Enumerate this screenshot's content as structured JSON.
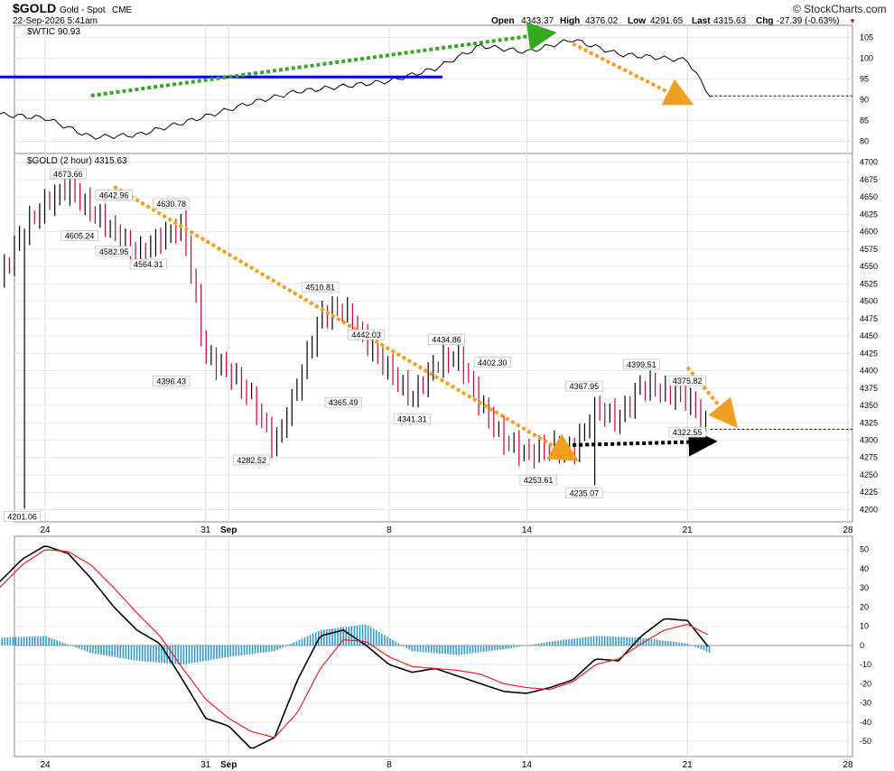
{
  "header": {
    "symbol": "$GOLD",
    "name": "Gold - Spot",
    "exchange": "CME",
    "datetime": "22-Sep-2026 5:41am",
    "brand": "© StockCharts.com",
    "open_label": "Open",
    "open": "4343.37",
    "high_label": "High",
    "high": "4376.02",
    "low_label": "Low",
    "low": "4291.65",
    "last_label": "Last",
    "last": "4315.63",
    "chg_label": "Chg",
    "chg": "-27.39 (-0.63%)",
    "chg_marker": "▼"
  },
  "colors": {
    "up": "#000000",
    "down": "#cc0033",
    "blue": "#0000ee",
    "green": "#33aa22",
    "orange": "#f0a020",
    "black_arrow": "#000000",
    "macd": "#000000",
    "signal": "#ee2222",
    "hist": "#3399cc"
  },
  "chart_data": [
    {
      "type": "line",
      "panel": "top",
      "legend": "$WTIC 90.93",
      "x_dates": [
        "Aug 22",
        "Aug 24",
        "Aug 26",
        "Aug 28",
        "Aug 31",
        "Sep 2",
        "Sep 4",
        "Sep 8",
        "Sep 10",
        "Sep 12",
        "Sep 14",
        "Sep 16",
        "Sep 18",
        "Sep 21",
        "Sep 22"
      ],
      "y": [
        86.5,
        85.6,
        81.0,
        81.5,
        86.0,
        89.3,
        92.0,
        94.5,
        97.5,
        103.0,
        101.5,
        104.5,
        101.0,
        99.5,
        90.93
      ],
      "yticks": [
        80,
        85,
        90,
        95,
        100,
        105
      ],
      "ylim": [
        77.5,
        107.5
      ],
      "hline": 95.5,
      "last": 90.93
    },
    {
      "type": "bar",
      "panel": "middle",
      "legend": "$GOLD (2 hour) 4315.63",
      "yticks": [
        4200,
        4225,
        4250,
        4275,
        4300,
        4325,
        4350,
        4375,
        4400,
        4425,
        4450,
        4475,
        4500,
        4525,
        4550,
        4575,
        4600,
        4625,
        4650,
        4675,
        4700
      ],
      "ylim": [
        4185,
        4710
      ],
      "path_dates": [
        "Aug 22",
        "Aug 23",
        "Aug 24",
        "Aug 25",
        "Aug 26",
        "Aug 27",
        "Aug 28",
        "Aug 29",
        "Aug 30",
        "Aug 31",
        "Sep 1",
        "Sep 2",
        "Sep 3",
        "Sep 4",
        "Sep 5",
        "Sep 6",
        "Sep 7",
        "Sep 8",
        "Sep 9",
        "Sep 10",
        "Sep 11",
        "Sep 12",
        "Sep 13",
        "Sep 14",
        "Sep 15",
        "Sep 16",
        "Sep 17",
        "Sep 18",
        "Sep 19",
        "Sep 20",
        "Sep 21",
        "Sep 22"
      ],
      "path_values": [
        4530,
        4600,
        4640,
        4665,
        4630,
        4600,
        4565,
        4590,
        4610,
        4420,
        4400,
        4360,
        4290,
        4380,
        4480,
        4490,
        4440,
        4400,
        4360,
        4410,
        4420,
        4350,
        4300,
        4280,
        4290,
        4285,
        4345,
        4330,
        4380,
        4370,
        4360,
        4316
      ],
      "annotations": [
        {
          "date": "Aug 23",
          "value": "4201.06",
          "pos": "below"
        },
        {
          "date": "Aug 25",
          "value": "4673.66",
          "pos": "above"
        },
        {
          "date": "Aug 25.5",
          "value": "4605.24",
          "pos": "below"
        },
        {
          "date": "Aug 27",
          "value": "4642.96",
          "pos": "above"
        },
        {
          "date": "Aug 27",
          "value": "4582.95",
          "pos": "below"
        },
        {
          "date": "Aug 28.5",
          "value": "4564.31",
          "pos": "below"
        },
        {
          "date": "Aug 29.5",
          "value": "4630.78",
          "pos": "above"
        },
        {
          "date": "Aug 29.5",
          "value": "4396.43",
          "pos": "below"
        },
        {
          "date": "Sep 2",
          "value": "4282.52",
          "pos": "below"
        },
        {
          "date": "Sep 5",
          "value": "4510.81",
          "pos": "above"
        },
        {
          "date": "Sep 6",
          "value": "4365.49",
          "pos": "below"
        },
        {
          "date": "Sep 7",
          "value": "4442.03",
          "pos": "above"
        },
        {
          "date": "Sep 9",
          "value": "4341.31",
          "pos": "below"
        },
        {
          "date": "Sep 10.5",
          "value": "4434.86",
          "pos": "above"
        },
        {
          "date": "Sep 12.5",
          "value": "4402.30",
          "pos": "above"
        },
        {
          "date": "Sep 14.5",
          "value": "4253.61",
          "pos": "below"
        },
        {
          "date": "Sep 16.5",
          "value": "4367.95",
          "pos": "above"
        },
        {
          "date": "Sep 16.5",
          "value": "4235.07",
          "pos": "below"
        },
        {
          "date": "Sep 19",
          "value": "4399.51",
          "pos": "above"
        },
        {
          "date": "Sep 21",
          "value": "4375.82",
          "pos": "above"
        },
        {
          "date": "Sep 21",
          "value": "4322.55",
          "pos": "below"
        }
      ],
      "last": 4315.63,
      "arrows": [
        {
          "color": "green",
          "from": [
            "Aug 26",
            91
          ],
          "to": [
            "Sep 15",
            106
          ],
          "panel": "top"
        },
        {
          "color": "orange",
          "from": [
            "Sep 16",
            103.5
          ],
          "to": [
            "Sep 21",
            89.5
          ],
          "panel": "top"
        },
        {
          "color": "orange",
          "from": [
            "Aug 27",
            4665
          ],
          "to": [
            "Sep 16",
            4275
          ],
          "panel": "middle"
        },
        {
          "color": "orange",
          "from": [
            "Sep 21",
            4405
          ],
          "to": [
            "Sep 23",
            4325
          ],
          "panel": "middle"
        },
        {
          "color": "black_arrow",
          "from": [
            "Sep 16",
            4293
          ],
          "to": [
            "Sep 22",
            4298
          ],
          "panel": "middle"
        }
      ]
    },
    {
      "type": "line",
      "panel": "bottom",
      "series": [
        {
          "role": "macd",
          "dates": [
            "Aug 22",
            "Aug 23",
            "Aug 24",
            "Aug 25",
            "Aug 26",
            "Aug 27",
            "Aug 28",
            "Aug 29",
            "Aug 30",
            "Aug 31",
            "Sep 1",
            "Sep 2",
            "Sep 3",
            "Sep 4",
            "Sep 5",
            "Sep 6",
            "Sep 7",
            "Sep 8",
            "Sep 9",
            "Sep 10",
            "Sep 11",
            "Sep 12",
            "Sep 13",
            "Sep 14",
            "Sep 15",
            "Sep 16",
            "Sep 17",
            "Sep 18",
            "Sep 19",
            "Sep 20",
            "Sep 21",
            "Sep 22"
          ],
          "values": [
            33,
            45,
            52,
            48,
            35,
            20,
            8,
            1,
            -18,
            -38,
            -42,
            -54,
            -48,
            -18,
            5,
            8,
            0,
            -10,
            -14,
            -12,
            -16,
            -20,
            -24,
            -25,
            -22,
            -18,
            -7,
            -8,
            5,
            14,
            13,
            -2
          ]
        },
        {
          "role": "signal",
          "dates": [
            "Aug 22",
            "Aug 23",
            "Aug 24",
            "Aug 25",
            "Aug 26",
            "Aug 27",
            "Aug 28",
            "Aug 29",
            "Aug 30",
            "Aug 31",
            "Sep 1",
            "Sep 2",
            "Sep 3",
            "Sep 4",
            "Sep 5",
            "Sep 6",
            "Sep 7",
            "Sep 8",
            "Sep 9",
            "Sep 10",
            "Sep 11",
            "Sep 12",
            "Sep 13",
            "Sep 14",
            "Sep 15",
            "Sep 16",
            "Sep 17",
            "Sep 18",
            "Sep 19",
            "Sep 20",
            "Sep 21",
            "Sep 22"
          ],
          "values": [
            30,
            42,
            50,
            49,
            42,
            30,
            17,
            5,
            -12,
            -28,
            -38,
            -45,
            -48,
            -35,
            -12,
            3,
            2,
            -6,
            -11,
            -12,
            -13,
            -15,
            -20,
            -22,
            -23,
            -19,
            -10,
            -7,
            1,
            8,
            11,
            5
          ]
        }
      ],
      "histogram": {
        "dates": [
          "Aug 22",
          "Aug 24",
          "Aug 26",
          "Aug 28",
          "Aug 30",
          "Sep 1",
          "Sep 3",
          "Sep 5",
          "Sep 7",
          "Sep 9",
          "Sep 11",
          "Sep 13",
          "Sep 15",
          "Sep 17",
          "Sep 19",
          "Sep 21",
          "Sep 22"
        ],
        "values": [
          4,
          5,
          -4,
          -8,
          -10,
          -6,
          -3,
          8,
          11,
          -3,
          -5,
          -2,
          2,
          5,
          4,
          1,
          -4
        ]
      },
      "yticks": [
        -50,
        -40,
        -30,
        -20,
        -10,
        0,
        10,
        20,
        30,
        40,
        50
      ],
      "ylim": [
        -57,
        56
      ]
    }
  ],
  "x_axis": {
    "ticks": [
      {
        "date": "Aug 24",
        "label": "24"
      },
      {
        "date": "Aug 31",
        "label": "31"
      },
      {
        "date": "Sep 1",
        "label": "Sep"
      },
      {
        "date": "Sep 8",
        "label": "8"
      },
      {
        "date": "Sep 14",
        "label": "14"
      },
      {
        "date": "Sep 21",
        "label": "21"
      },
      {
        "date": "Sep 28",
        "label": "28"
      }
    ]
  }
}
